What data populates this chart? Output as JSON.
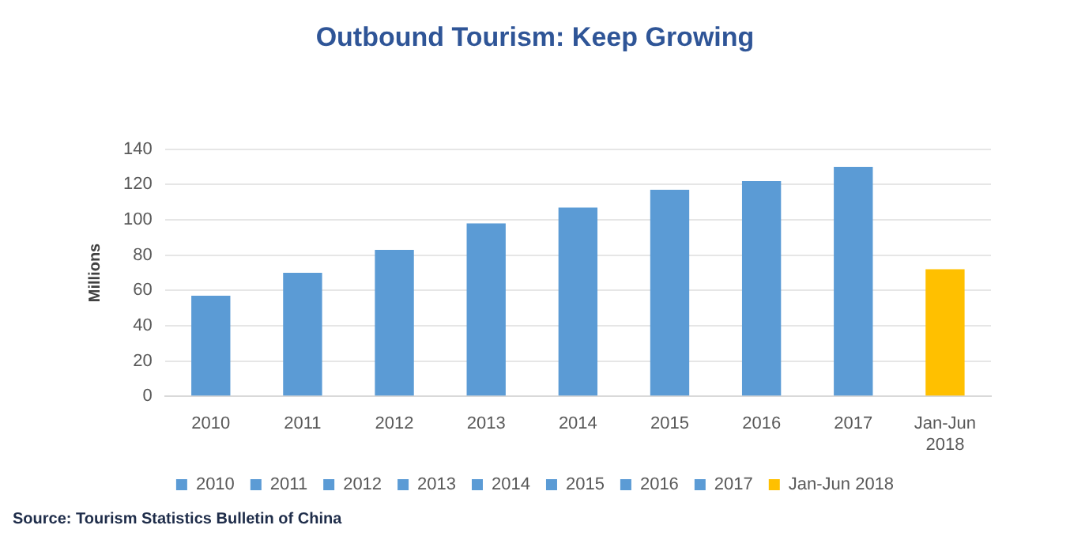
{
  "chart_data": {
    "type": "bar",
    "title": "Outbound Tourism: Keep Growing",
    "ylabel": "Millions",
    "categories": [
      "2010",
      "2011",
      "2012",
      "2013",
      "2014",
      "2015",
      "2016",
      "2017",
      "Jan-Jun 2018"
    ],
    "series": [
      {
        "name": "2010",
        "color": "#5b9bd5",
        "values": [
          57,
          null,
          null,
          null,
          null,
          null,
          null,
          null,
          null
        ]
      },
      {
        "name": "2011",
        "color": "#5b9bd5",
        "values": [
          null,
          70,
          null,
          null,
          null,
          null,
          null,
          null,
          null
        ]
      },
      {
        "name": "2012",
        "color": "#5b9bd5",
        "values": [
          null,
          null,
          83,
          null,
          null,
          null,
          null,
          null,
          null
        ]
      },
      {
        "name": "2013",
        "color": "#5b9bd5",
        "values": [
          null,
          null,
          null,
          98,
          null,
          null,
          null,
          null,
          null
        ]
      },
      {
        "name": "2014",
        "color": "#5b9bd5",
        "values": [
          null,
          null,
          null,
          null,
          107,
          null,
          null,
          null,
          null
        ]
      },
      {
        "name": "2015",
        "color": "#5b9bd5",
        "values": [
          null,
          null,
          null,
          null,
          null,
          117,
          null,
          null,
          null
        ]
      },
      {
        "name": "2016",
        "color": "#5b9bd5",
        "values": [
          null,
          null,
          null,
          null,
          null,
          null,
          122,
          null,
          null
        ]
      },
      {
        "name": "2017",
        "color": "#5b9bd5",
        "values": [
          null,
          null,
          null,
          null,
          null,
          null,
          null,
          130,
          null
        ]
      },
      {
        "name": "Jan-Jun 2018",
        "color": "#ffc000",
        "values": [
          null,
          null,
          null,
          null,
          null,
          null,
          null,
          null,
          72
        ]
      }
    ],
    "stacked": true,
    "ylim": [
      0,
      140
    ],
    "yticks": [
      0,
      20,
      40,
      60,
      80,
      100,
      120,
      140
    ],
    "grid": "y",
    "legend": "bottom",
    "annotations": [
      "Source: Tourism Statistics Bulletin of China"
    ]
  }
}
